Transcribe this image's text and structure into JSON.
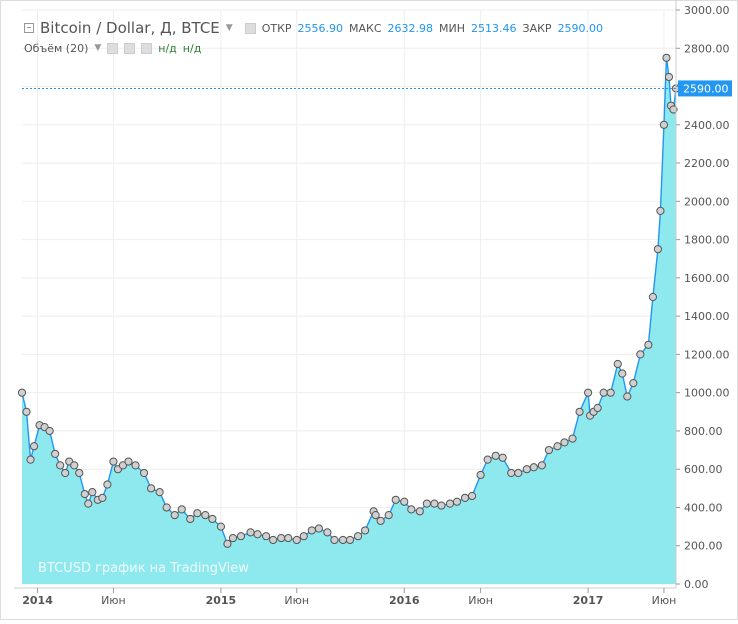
{
  "header": {
    "symbol_title": "Bitcoin / Dollar, Д, BTCE",
    "open_label": "ОТКР",
    "open_value": "2556.90",
    "high_label": "МАКС",
    "high_value": "2632.98",
    "low_label": "МИН",
    "low_value": "2513.46",
    "close_label": "ЗАКР",
    "close_value": "2590.00",
    "volume_label": "Объём (20)",
    "volume_val1": "н/д",
    "volume_val2": "н/д"
  },
  "watermark": "BTCUSD график на TradingView",
  "colors": {
    "line": "#2196f3",
    "area": "#8ee9ee",
    "marker_fill": "#d0d0d0",
    "marker_stroke": "#555555",
    "last_price": "#2196f3"
  },
  "chart_data": {
    "type": "area",
    "x_ticks": [
      "2014",
      "Июн",
      "2015",
      "Июн",
      "2016",
      "Июн",
      "2017",
      "Июн"
    ],
    "x_tick_dates": [
      "2014-01-01",
      "2014-06-01",
      "2015-01-01",
      "2015-06-01",
      "2016-01-01",
      "2016-06-01",
      "2017-01-01",
      "2017-06-01"
    ],
    "y_ticks": [
      "0.00",
      "200.00",
      "400.00",
      "600.00",
      "800.00",
      "1000.00",
      "1200.00",
      "1400.00",
      "1600.00",
      "1800.00",
      "2000.00",
      "2200.00",
      "2400.00",
      "2600.00",
      "2800.00",
      "3000.00"
    ],
    "ylim": [
      0,
      3000
    ],
    "x_range": [
      "2013-12-01",
      "2017-06-25"
    ],
    "last_price_label": "2590.00",
    "last_price": 2590,
    "series": [
      {
        "x": [
          "2013-12-01",
          "2013-12-10",
          "2013-12-18",
          "2013-12-25",
          "2014-01-05",
          "2014-01-15",
          "2014-01-25",
          "2014-02-05",
          "2014-02-15",
          "2014-02-25",
          "2014-03-05",
          "2014-03-15",
          "2014-03-25",
          "2014-04-05",
          "2014-04-12",
          "2014-04-20",
          "2014-05-01",
          "2014-05-10",
          "2014-05-20",
          "2014-06-01",
          "2014-06-10",
          "2014-06-20",
          "2014-07-01",
          "2014-07-15",
          "2014-08-01",
          "2014-08-15",
          "2014-09-01",
          "2014-09-15",
          "2014-10-01",
          "2014-10-15",
          "2014-11-01",
          "2014-11-15",
          "2014-12-01",
          "2014-12-15",
          "2015-01-01",
          "2015-01-14",
          "2015-01-25",
          "2015-02-10",
          "2015-03-01",
          "2015-03-15",
          "2015-04-01",
          "2015-04-15",
          "2015-05-01",
          "2015-05-15",
          "2015-06-01",
          "2015-06-15",
          "2015-07-01",
          "2015-07-15",
          "2015-08-01",
          "2015-08-15",
          "2015-09-01",
          "2015-09-15",
          "2015-10-01",
          "2015-10-15",
          "2015-11-01",
          "2015-11-05",
          "2015-11-15",
          "2015-12-01",
          "2015-12-15",
          "2016-01-01",
          "2016-01-15",
          "2016-02-01",
          "2016-02-15",
          "2016-03-01",
          "2016-03-15",
          "2016-04-01",
          "2016-04-15",
          "2016-05-01",
          "2016-05-15",
          "2016-06-01",
          "2016-06-15",
          "2016-07-01",
          "2016-07-15",
          "2016-08-01",
          "2016-08-15",
          "2016-09-01",
          "2016-09-15",
          "2016-10-01",
          "2016-10-15",
          "2016-11-01",
          "2016-11-15",
          "2016-12-01",
          "2016-12-15",
          "2017-01-01",
          "2017-01-05",
          "2017-01-12",
          "2017-01-20",
          "2017-02-01",
          "2017-02-15",
          "2017-03-01",
          "2017-03-10",
          "2017-03-20",
          "2017-04-01",
          "2017-04-15",
          "2017-05-01",
          "2017-05-10",
          "2017-05-20",
          "2017-05-25",
          "2017-06-01",
          "2017-06-06",
          "2017-06-11",
          "2017-06-15",
          "2017-06-20",
          "2017-06-25"
        ],
        "y": [
          1000,
          900,
          650,
          720,
          830,
          820,
          800,
          680,
          620,
          580,
          640,
          620,
          580,
          470,
          420,
          480,
          440,
          450,
          520,
          640,
          600,
          620,
          640,
          620,
          580,
          500,
          480,
          400,
          360,
          390,
          340,
          370,
          360,
          340,
          300,
          210,
          240,
          250,
          270,
          260,
          250,
          230,
          240,
          240,
          230,
          250,
          280,
          290,
          270,
          230,
          230,
          230,
          250,
          280,
          380,
          360,
          330,
          360,
          440,
          430,
          390,
          380,
          420,
          420,
          410,
          420,
          430,
          450,
          460,
          570,
          650,
          670,
          660,
          580,
          580,
          600,
          610,
          620,
          700,
          720,
          740,
          760,
          900,
          1000,
          880,
          900,
          920,
          1000,
          1000,
          1150,
          1100,
          980,
          1050,
          1200,
          1250,
          1500,
          1750,
          1950,
          2400,
          2750,
          2650,
          2500,
          2480,
          2590
        ]
      }
    ]
  }
}
